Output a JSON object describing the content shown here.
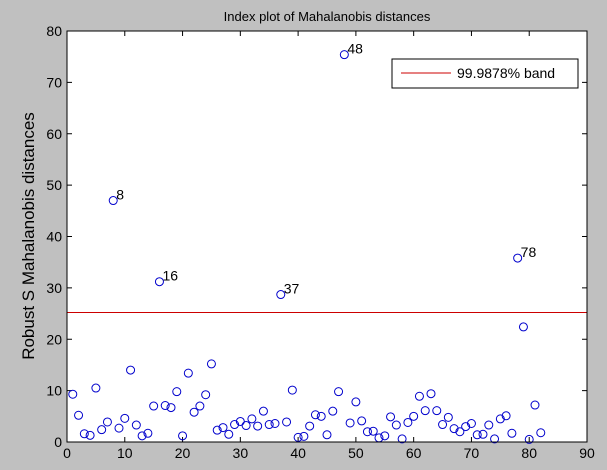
{
  "figure": {
    "background": "#c0c0c0"
  },
  "chart_data": {
    "type": "scatter",
    "title": "Index plot of Mahalanobis distances",
    "xlabel": "",
    "ylabel": "Robust S Mahalanobis distances",
    "xlim": [
      0,
      90
    ],
    "ylim": [
      0,
      80
    ],
    "xticks": [
      0,
      10,
      20,
      30,
      40,
      50,
      60,
      70,
      80,
      90
    ],
    "yticks": [
      0,
      10,
      20,
      30,
      40,
      50,
      60,
      70,
      80
    ],
    "grid": false,
    "legend": {
      "position": "top-right",
      "entries": [
        "99.9878% band"
      ]
    },
    "threshold": {
      "value": 25.2,
      "color": "#cc0000",
      "label": "99.9878% band"
    },
    "marker_color": "#0000cc",
    "points": [
      [
        1,
        9.3
      ],
      [
        2,
        5.2
      ],
      [
        3,
        1.6
      ],
      [
        4,
        1.3
      ],
      [
        5,
        10.5
      ],
      [
        6,
        2.4
      ],
      [
        7,
        3.9
      ],
      [
        8,
        47.0
      ],
      [
        9,
        2.7
      ],
      [
        10,
        4.6
      ],
      [
        11,
        14.0
      ],
      [
        12,
        3.3
      ],
      [
        13,
        1.2
      ],
      [
        14,
        1.7
      ],
      [
        15,
        7.0
      ],
      [
        16,
        31.2
      ],
      [
        17,
        7.1
      ],
      [
        18,
        6.7
      ],
      [
        19,
        9.8
      ],
      [
        20,
        1.2
      ],
      [
        21,
        13.4
      ],
      [
        22,
        5.8
      ],
      [
        23,
        7.0
      ],
      [
        24,
        9.2
      ],
      [
        25,
        15.2
      ],
      [
        26,
        2.3
      ],
      [
        27,
        2.8
      ],
      [
        28,
        1.5
      ],
      [
        29,
        3.4
      ],
      [
        30,
        4.0
      ],
      [
        31,
        3.2
      ],
      [
        32,
        4.5
      ],
      [
        33,
        3.1
      ],
      [
        34,
        6.0
      ],
      [
        35,
        3.4
      ],
      [
        36,
        3.6
      ],
      [
        37,
        28.7
      ],
      [
        38,
        3.9
      ],
      [
        39,
        10.1
      ],
      [
        40,
        0.9
      ],
      [
        41,
        1.1
      ],
      [
        42,
        3.1
      ],
      [
        43,
        5.3
      ],
      [
        44,
        5.0
      ],
      [
        45,
        1.4
      ],
      [
        46,
        6.0
      ],
      [
        47,
        9.8
      ],
      [
        48,
        75.4
      ],
      [
        49,
        3.7
      ],
      [
        50,
        7.8
      ],
      [
        51,
        4.1
      ],
      [
        52,
        2.0
      ],
      [
        53,
        2.1
      ],
      [
        54,
        0.8
      ],
      [
        55,
        1.2
      ],
      [
        56,
        4.9
      ],
      [
        57,
        3.3
      ],
      [
        58,
        0.6
      ],
      [
        59,
        3.8
      ],
      [
        60,
        5.0
      ],
      [
        61,
        8.9
      ],
      [
        62,
        6.1
      ],
      [
        63,
        9.4
      ],
      [
        64,
        6.1
      ],
      [
        65,
        3.4
      ],
      [
        66,
        4.8
      ],
      [
        67,
        2.6
      ],
      [
        68,
        2.0
      ],
      [
        69,
        3.0
      ],
      [
        70,
        3.6
      ],
      [
        71,
        1.4
      ],
      [
        72,
        1.5
      ],
      [
        73,
        3.3
      ],
      [
        74,
        0.6
      ],
      [
        75,
        4.5
      ],
      [
        76,
        5.1
      ],
      [
        77,
        1.7
      ],
      [
        78,
        35.8
      ],
      [
        79,
        22.4
      ],
      [
        80,
        0.5
      ],
      [
        81,
        7.2
      ],
      [
        82,
        1.8
      ]
    ],
    "annotations": [
      {
        "x": 8,
        "y": 47.0,
        "text": "8"
      },
      {
        "x": 16,
        "y": 31.2,
        "text": "16"
      },
      {
        "x": 37,
        "y": 28.7,
        "text": "37"
      },
      {
        "x": 48,
        "y": 75.4,
        "text": "48"
      },
      {
        "x": 78,
        "y": 35.8,
        "text": "78"
      }
    ]
  }
}
